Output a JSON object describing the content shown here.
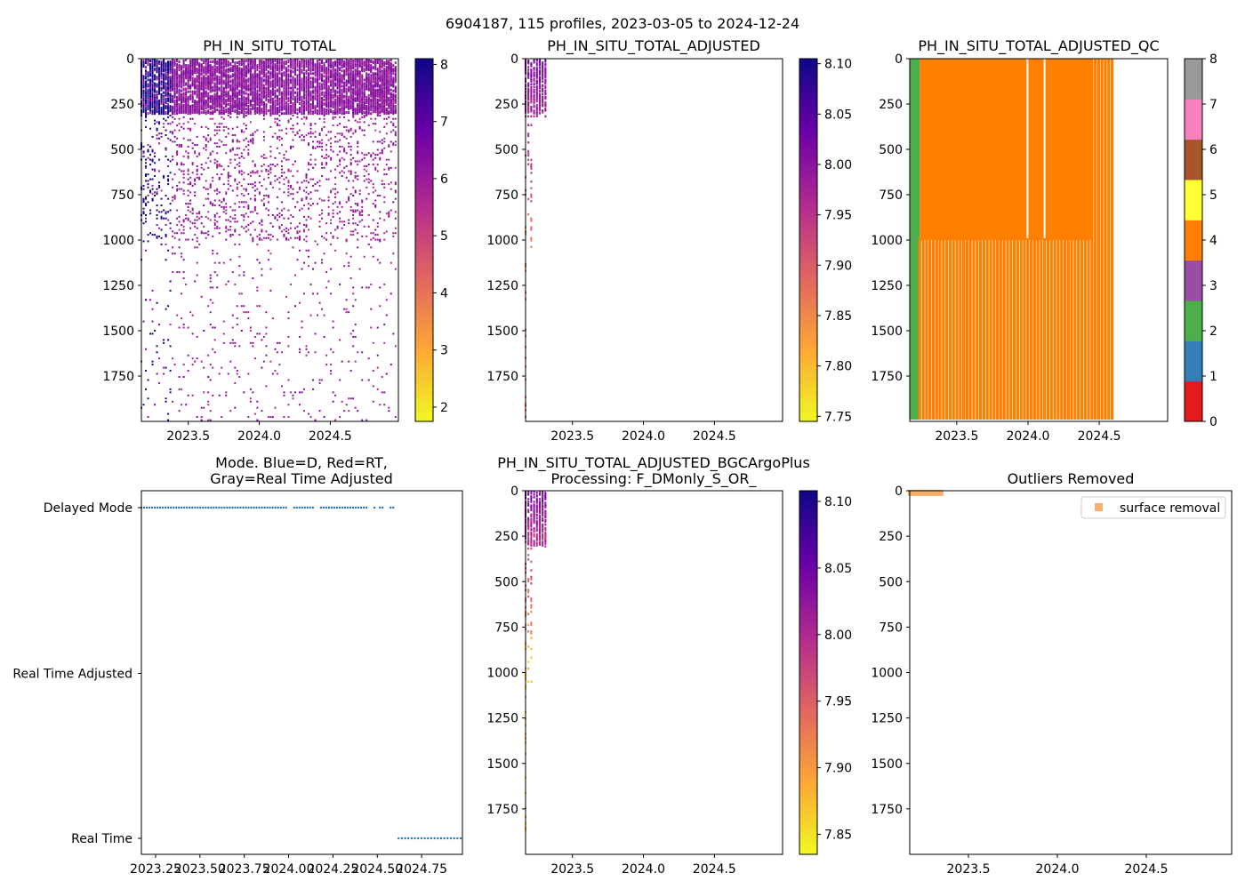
{
  "figure": {
    "suptitle": "6904187, 115 profiles, 2023-03-05 to 2024-12-24"
  },
  "colors": {
    "plasma_stops": [
      "#f0f921",
      "#fca636",
      "#e16462",
      "#b12a90",
      "#6a00a8",
      "#0d0887"
    ],
    "qc_colors": [
      "#e41a1c",
      "#377eb8",
      "#4daf4a",
      "#984ea3",
      "#ff7f00",
      "#ffff33",
      "#a65628",
      "#f781bf",
      "#999999"
    ],
    "mode_dot": "#1f77b4",
    "outlier": "#fdae6b"
  },
  "chart_data": [
    {
      "id": "p1",
      "type": "heatmap",
      "title": "PH_IN_SITU_TOTAL",
      "xlim": [
        2023.17,
        2024.98
      ],
      "ylim": [
        2000,
        0
      ],
      "xticks": [
        2023.5,
        2024.0,
        2024.5
      ],
      "xticklabels": [
        "2023.5",
        "2024.0",
        "2024.5"
      ],
      "yticks": [
        0,
        250,
        500,
        750,
        1000,
        1250,
        1500,
        1750
      ],
      "yticklabels": [
        "0",
        "250",
        "500",
        "750",
        "1000",
        "1250",
        "1500",
        "1750"
      ],
      "colorbar": {
        "min": 1.75,
        "max": 8.1,
        "ticks": [
          2,
          3,
          4,
          5,
          6,
          7,
          8
        ],
        "ticklabels": [
          "2",
          "3",
          "4",
          "5",
          "6",
          "7",
          "8"
        ]
      },
      "profiles": {
        "x_start": 2023.17,
        "x_end": 2024.96,
        "count": 115,
        "surface_value": 5.8,
        "deep_value": 5.5,
        "edge_value": 8.0
      }
    },
    {
      "id": "p2",
      "type": "heatmap",
      "title": "PH_IN_SITU_TOTAL_ADJUSTED",
      "xlim": [
        2023.17,
        2024.98
      ],
      "ylim": [
        2000,
        0
      ],
      "xticks": [
        2023.5,
        2024.0,
        2024.5
      ],
      "xticklabels": [
        "2023.5",
        "2024.0",
        "2024.5"
      ],
      "yticks": [
        0,
        250,
        500,
        750,
        1000,
        1250,
        1500,
        1750
      ],
      "yticklabels": [
        "0",
        "250",
        "500",
        "750",
        "1000",
        "1250",
        "1500",
        "1750"
      ],
      "colorbar": {
        "min": 7.745,
        "max": 8.105,
        "ticks": [
          7.75,
          7.8,
          7.85,
          7.9,
          7.95,
          8.0,
          8.05,
          8.1
        ],
        "ticklabels": [
          "7.75",
          "7.80",
          "7.85",
          "7.90",
          "7.95",
          "8.00",
          "8.05",
          "8.10"
        ]
      },
      "profiles": {
        "x_start": 2023.17,
        "x_end": 2023.31,
        "count": 8,
        "surface_value": 8.02,
        "deep_value": 7.87
      }
    },
    {
      "id": "p3",
      "type": "heatmap",
      "title": "PH_IN_SITU_TOTAL_ADJUSTED_QC",
      "xlim": [
        2023.17,
        2024.98
      ],
      "ylim": [
        2000,
        0
      ],
      "xticks": [
        2023.5,
        2024.0,
        2024.5
      ],
      "xticklabels": [
        "2023.5",
        "2024.0",
        "2024.5"
      ],
      "yticks": [
        0,
        250,
        500,
        750,
        1000,
        1250,
        1500,
        1750
      ],
      "yticklabels": [
        "0",
        "250",
        "500",
        "750",
        "1000",
        "1250",
        "1500",
        "1750"
      ],
      "colorbar": {
        "min": 0,
        "max": 8,
        "ticks": [
          0,
          1,
          2,
          3,
          4,
          5,
          6,
          7,
          8
        ],
        "ticklabels": [
          "0",
          "1",
          "2",
          "3",
          "4",
          "5",
          "6",
          "7",
          "8"
        ],
        "discrete": true
      },
      "qc": {
        "qc2_region": [
          2023.17,
          2023.24
        ],
        "qc4_solid_region": [
          2023.24,
          2024.44
        ],
        "qc4_solid_depth": 1000,
        "qc4_stripe_region": [
          2023.24,
          2024.59
        ],
        "stripe_count": 58,
        "stripe_depth": 1990
      }
    },
    {
      "id": "p4",
      "type": "scatter",
      "title_lines": [
        "Mode. Blue=D, Red=RT,",
        "Gray=Real Time Adjusted"
      ],
      "xlim": [
        2023.17,
        2024.98
      ],
      "xticks": [
        2023.25,
        2023.5,
        2023.75,
        2024.0,
        2024.25,
        2024.5,
        2024.75
      ],
      "xticklabels": [
        "2023.25",
        "2023.50",
        "2023.75",
        "2024.00",
        "2024.25",
        "2024.50",
        "2024.75"
      ],
      "categories": [
        "Delayed Mode",
        "Real Time Adjusted",
        "Real Time"
      ],
      "series": [
        {
          "name": "Delayed Mode",
          "x_start": 2023.17,
          "x_end": 2024.59,
          "count": 95,
          "gaps": [
            [
              2024.0,
              2024.02
            ],
            [
              2024.15,
              2024.17
            ],
            [
              2024.44,
              2024.47
            ],
            [
              2024.49,
              2024.51
            ],
            [
              2024.54,
              2024.56
            ]
          ]
        },
        {
          "name": "Real Time",
          "x_start": 2024.62,
          "x_end": 2024.97,
          "count": 20,
          "gaps": []
        }
      ]
    },
    {
      "id": "p5",
      "type": "heatmap",
      "title_lines": [
        "PH_IN_SITU_TOTAL_ADJUSTED_BGCArgoPlus",
        "Processing: F_DMonly_S_OR_"
      ],
      "xlim": [
        2023.17,
        2024.98
      ],
      "ylim": [
        2000,
        0
      ],
      "xticks": [
        2023.5,
        2024.0,
        2024.5
      ],
      "xticklabels": [
        "2023.5",
        "2024.0",
        "2024.5"
      ],
      "yticks": [
        0,
        250,
        500,
        750,
        1000,
        1250,
        1500,
        1750
      ],
      "yticklabels": [
        "0",
        "250",
        "500",
        "750",
        "1000",
        "1250",
        "1500",
        "1750"
      ],
      "colorbar": {
        "min": 7.835,
        "max": 8.108,
        "ticks": [
          7.85,
          7.9,
          7.95,
          8.0,
          8.05,
          8.1
        ],
        "ticklabels": [
          "7.85",
          "7.90",
          "7.95",
          "8.00",
          "8.05",
          "8.10"
        ]
      },
      "profiles": {
        "x_start": 2023.17,
        "x_end": 2023.31,
        "count": 8,
        "surface_value": 8.04,
        "deep_value": 7.87
      }
    },
    {
      "id": "p6",
      "type": "scatter",
      "title": "Outliers Removed",
      "xlim": [
        2023.17,
        2024.98
      ],
      "ylim": [
        2000,
        0
      ],
      "xticks": [
        2023.5,
        2024.0,
        2024.5
      ],
      "xticklabels": [
        "2023.5",
        "2024.0",
        "2024.5"
      ],
      "yticks": [
        0,
        250,
        500,
        750,
        1000,
        1250,
        1500,
        1750
      ],
      "yticklabels": [
        "0",
        "250",
        "500",
        "750",
        "1000",
        "1250",
        "1500",
        "1750"
      ],
      "legend": {
        "label": "surface removal",
        "location": "top-right"
      },
      "outliers": {
        "x_start": 2023.17,
        "x_end": 2023.35,
        "depth_min": 0,
        "depth_max": 18
      }
    }
  ]
}
